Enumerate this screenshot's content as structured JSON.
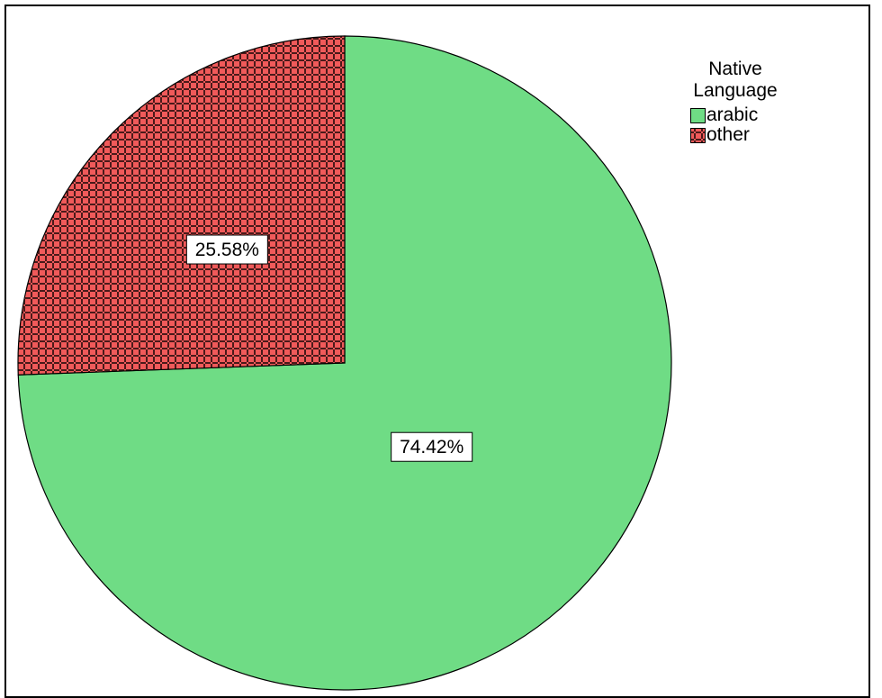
{
  "chart_data": {
    "type": "pie",
    "legend_title": "Native\nLanguage",
    "legend_title_lines": [
      "Native",
      "Language"
    ],
    "legend_placement": "top-right",
    "slices": [
      {
        "name": "arabic",
        "value": 74.42,
        "label": "74.42%",
        "color": "#6fdc85",
        "pattern": "solid"
      },
      {
        "name": "other",
        "value": 25.58,
        "label": "25.58%",
        "color": "#f05a5a",
        "pattern": "cross-hatch"
      }
    ]
  }
}
